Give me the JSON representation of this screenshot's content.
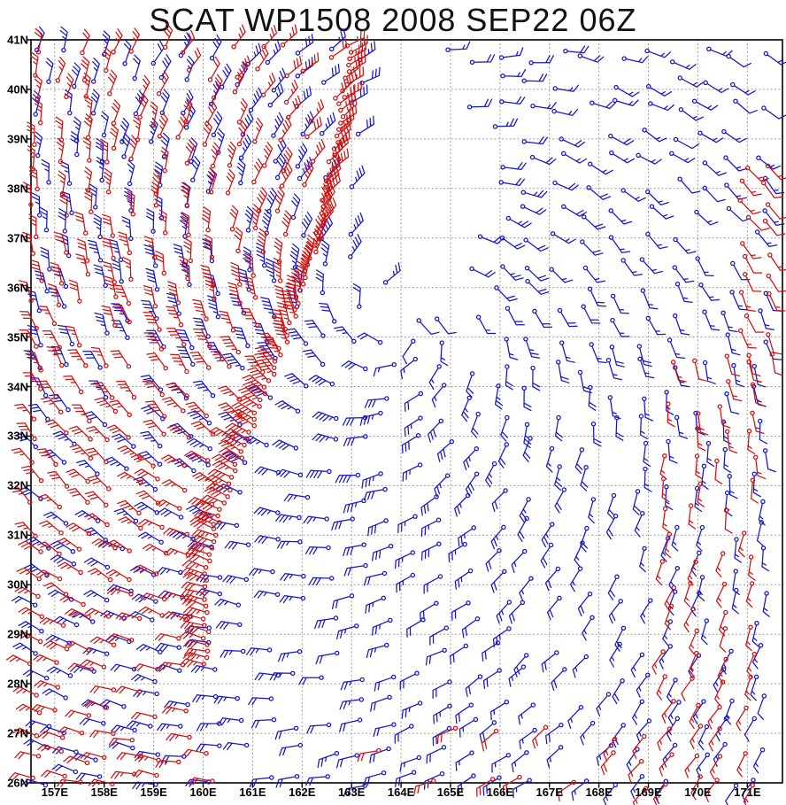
{
  "title": "SCAT WP1508 2008 SEP22 06Z",
  "colors": {
    "background": "#ffffff",
    "axis": "#000000",
    "grid": "#999999",
    "title": "#111111",
    "red": "#d01111",
    "blue": "#1616c8"
  },
  "chart_data": {
    "type": "scatter",
    "subtype": "wind-barb-map",
    "title": "SCAT WP1508 2008 SEP22 06Z",
    "x_axis": {
      "unit": "E",
      "tick_labels": [
        "157E",
        "158E",
        "159E",
        "160E",
        "161E",
        "162E",
        "163E",
        "164E",
        "165E",
        "166E",
        "167E",
        "168E",
        "169E",
        "170E",
        "171E"
      ],
      "tick_values": [
        157,
        158,
        159,
        160,
        161,
        162,
        163,
        164,
        165,
        166,
        167,
        168,
        169,
        170,
        171
      ],
      "range": [
        156.52,
        171.71
      ]
    },
    "y_axis": {
      "unit": "N",
      "tick_labels": [
        "41N",
        "40N",
        "39N",
        "38N",
        "37N",
        "36N",
        "35N",
        "34N",
        "33N",
        "32N",
        "31N",
        "30N",
        "29N",
        "28N",
        "27N",
        "26N"
      ],
      "tick_values": [
        41,
        40,
        39,
        38,
        37,
        36,
        35,
        34,
        33,
        32,
        31,
        30,
        29,
        28,
        27,
        26
      ],
      "range": [
        26,
        41
      ]
    },
    "grid": {
      "style": "dotted",
      "color": "#999999"
    },
    "barb_encoding": {
      "half_barb_kt": 5,
      "full_barb_kt": 10,
      "pennant_kt": 50,
      "station_marker": "open-circle"
    },
    "series": [
      {
        "name": "red-barbs",
        "color": "#d01111"
      },
      {
        "name": "blue-barbs",
        "color": "#1616c8"
      }
    ],
    "flow_field": {
      "rotation": "counterclockwise",
      "center_lon": 164.0,
      "center_lat": 35.2,
      "vmax_kt": 34,
      "rmax_deg": 2.4,
      "inner_exp": 1.1,
      "outer_exp": 0.45,
      "inflow_deg": 20,
      "asym_amp": 0.38,
      "asym_phase_deg": 185,
      "min_kt": 5,
      "max_kt": 45
    },
    "coverage": {
      "blue_grid": {
        "lon_min": 156.75,
        "lon_max": 171.55,
        "lat_min": 26.1,
        "lat_max": 40.95,
        "dlon": 0.58,
        "dlat": 0.52,
        "jitter": 0.16,
        "drop": 0.12
      },
      "void_ellipse": {
        "lon": 164.45,
        "lat": 38.2,
        "rx": 1.1,
        "ry": 2.6
      },
      "red_left": {
        "lon_min": 156.62,
        "lat_min": 26.05,
        "lat_max": 40.95,
        "dlon": 0.5,
        "dlat": 0.46,
        "jitter": 0.13,
        "drop": 0.1
      },
      "red_edge_points": [
        [
          26,
          160.4
        ],
        [
          28,
          160.1
        ],
        [
          30,
          160.0
        ],
        [
          32,
          160.5
        ],
        [
          34,
          161.3
        ],
        [
          35.5,
          161.85
        ],
        [
          37,
          162.3
        ],
        [
          39,
          162.7
        ],
        [
          41,
          163.0
        ]
      ],
      "red_edge_line": {
        "lat_min": 28.4,
        "lat_max": 40.95,
        "dlat": 0.13,
        "lon_jitter": 0.07,
        "speed_boost": 1.2
      },
      "red_right": {
        "lon_min": 169.4,
        "lon_max": 171.55,
        "lat_min": 26.05,
        "lat_max": 34.7,
        "dlon": 0.55,
        "dlat": 0.5,
        "jitter": 0.12,
        "drop": 0.08
      },
      "red_right_strip": {
        "lon_min": 170.95,
        "lon_max": 171.55,
        "lat_min": 34.7,
        "lat_max": 38.6,
        "dlon": 0.45,
        "dlat": 0.38,
        "jitter": 0.1,
        "drop": 0.15
      },
      "red_bottom": {
        "lon_min": 163.4,
        "lon_max": 169.35,
        "lat_min": 26.02,
        "lat_max": 27.5,
        "dlon": 0.6,
        "dlat": 0.5,
        "jitter": 0.15,
        "drop": 0.55
      }
    },
    "seed": 77
  }
}
